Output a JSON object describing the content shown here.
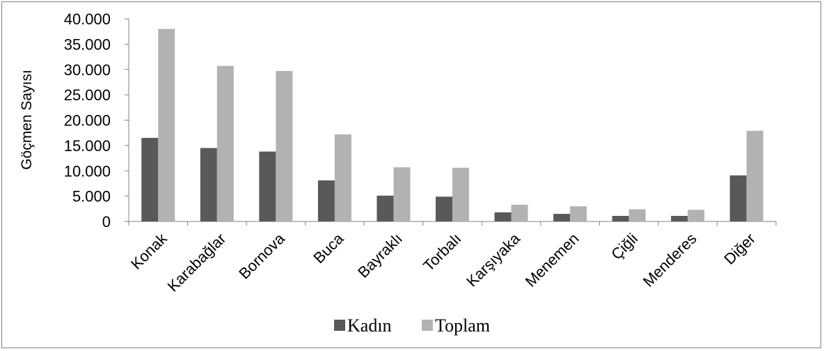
{
  "chart_data": {
    "type": "bar",
    "title": "",
    "xlabel": "",
    "ylabel": "Göçmen Sayısı",
    "ylim": [
      0,
      40000
    ],
    "yticks": [
      "0",
      "5.000",
      "10.000",
      "15.000",
      "20.000",
      "25.000",
      "30.000",
      "35.000",
      "40.000"
    ],
    "categories": [
      "Konak",
      "Karabağlar",
      "Bornova",
      "Buca",
      "Bayraklı",
      "Torbalı",
      "Karşıyaka",
      "Menemen",
      "Çiğli",
      "Menderes",
      "Diğer"
    ],
    "series": [
      {
        "name": "Kadın",
        "color": "#595959",
        "values": [
          16500,
          14500,
          13800,
          8100,
          5100,
          4900,
          1800,
          1500,
          1100,
          1100,
          9100
        ]
      },
      {
        "name": "Toplam",
        "color": "#b2b2b2",
        "values": [
          38000,
          30700,
          29700,
          17200,
          10700,
          10600,
          3300,
          3000,
          2400,
          2300,
          17900
        ]
      }
    ],
    "grid": false,
    "legend_position": "bottom"
  }
}
